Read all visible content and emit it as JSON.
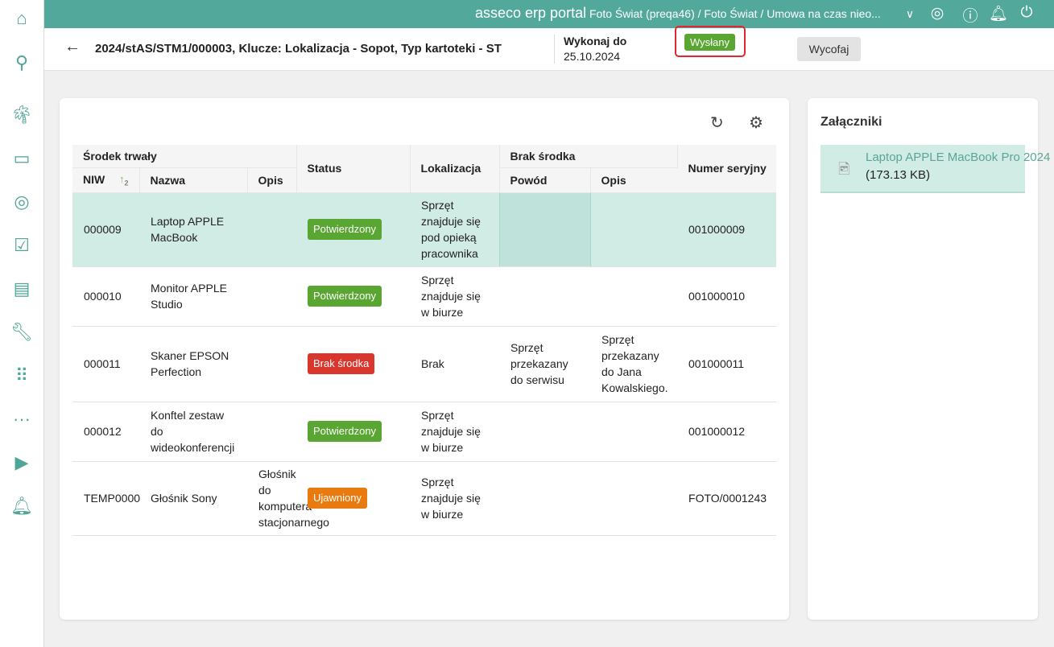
{
  "topbar": {
    "brand": "asseco erp portal",
    "context": "Foto Świat (preqa46) / Foto Świat / Umowa na czas nieo..."
  },
  "header": {
    "title": "2024/stAS/STM1/000003, Klucze: Lokalizacja - Sopot, Typ kartoteki - ST",
    "due_label": "Wykonaj do",
    "due_value": "25.10.2024",
    "status": "Wysłany",
    "withdraw": "Wycofaj"
  },
  "table": {
    "groups": {
      "asset": "Środek trwały",
      "missing": "Brak środka"
    },
    "headers": {
      "niw": "NIW",
      "sort_order": "2",
      "name": "Nazwa",
      "desc": "Opis",
      "status": "Status",
      "location": "Lokalizacja",
      "reason": "Powód",
      "missing_desc": "Opis",
      "serial": "Numer seryjny"
    },
    "rows": [
      {
        "niw": "000009",
        "name": "Laptop APPLE MacBook",
        "desc": "",
        "status": "Potwierdzony",
        "location": "Sprzęt znajduje się pod opieką pracownika",
        "reason": "",
        "missing_desc": "",
        "serial": "001000009"
      },
      {
        "niw": "000010",
        "name": "Monitor APPLE Studio",
        "desc": "",
        "status": "Potwierdzony",
        "location": "Sprzęt znajduje się w biurze",
        "reason": "",
        "missing_desc": "",
        "serial": "001000010"
      },
      {
        "niw": "000011",
        "name": "Skaner EPSON Perfection",
        "desc": "",
        "status": "Brak środka",
        "location": "Brak",
        "reason": "Sprzęt przekazany do serwisu",
        "missing_desc": "Sprzęt przekazany do Jana Kowalskiego.",
        "serial": "001000011"
      },
      {
        "niw": "000012",
        "name": "Konftel zestaw do wideokonferencji",
        "desc": "",
        "status": "Potwierdzony",
        "location": "Sprzęt znajduje się w biurze",
        "reason": "",
        "missing_desc": "",
        "serial": "001000012"
      },
      {
        "niw": "TEMP0000",
        "name": "Głośnik Sony",
        "desc": "Głośnik do komputera stacjonarnego",
        "status": "Ujawniony",
        "location": "Sprzęt znajduje się w biurze",
        "reason": "",
        "missing_desc": "",
        "serial": "FOTO/0001243"
      }
    ]
  },
  "attachments": {
    "title": "Załączniki",
    "items": [
      {
        "name": "Laptop APPLE MacBook Pro 2024",
        "size": "(173.13 KB)"
      }
    ]
  },
  "colors": {
    "accent": "#52a99b",
    "confirmed": "#5aa632",
    "missing": "#d9372e",
    "revealed": "#e87a10"
  }
}
